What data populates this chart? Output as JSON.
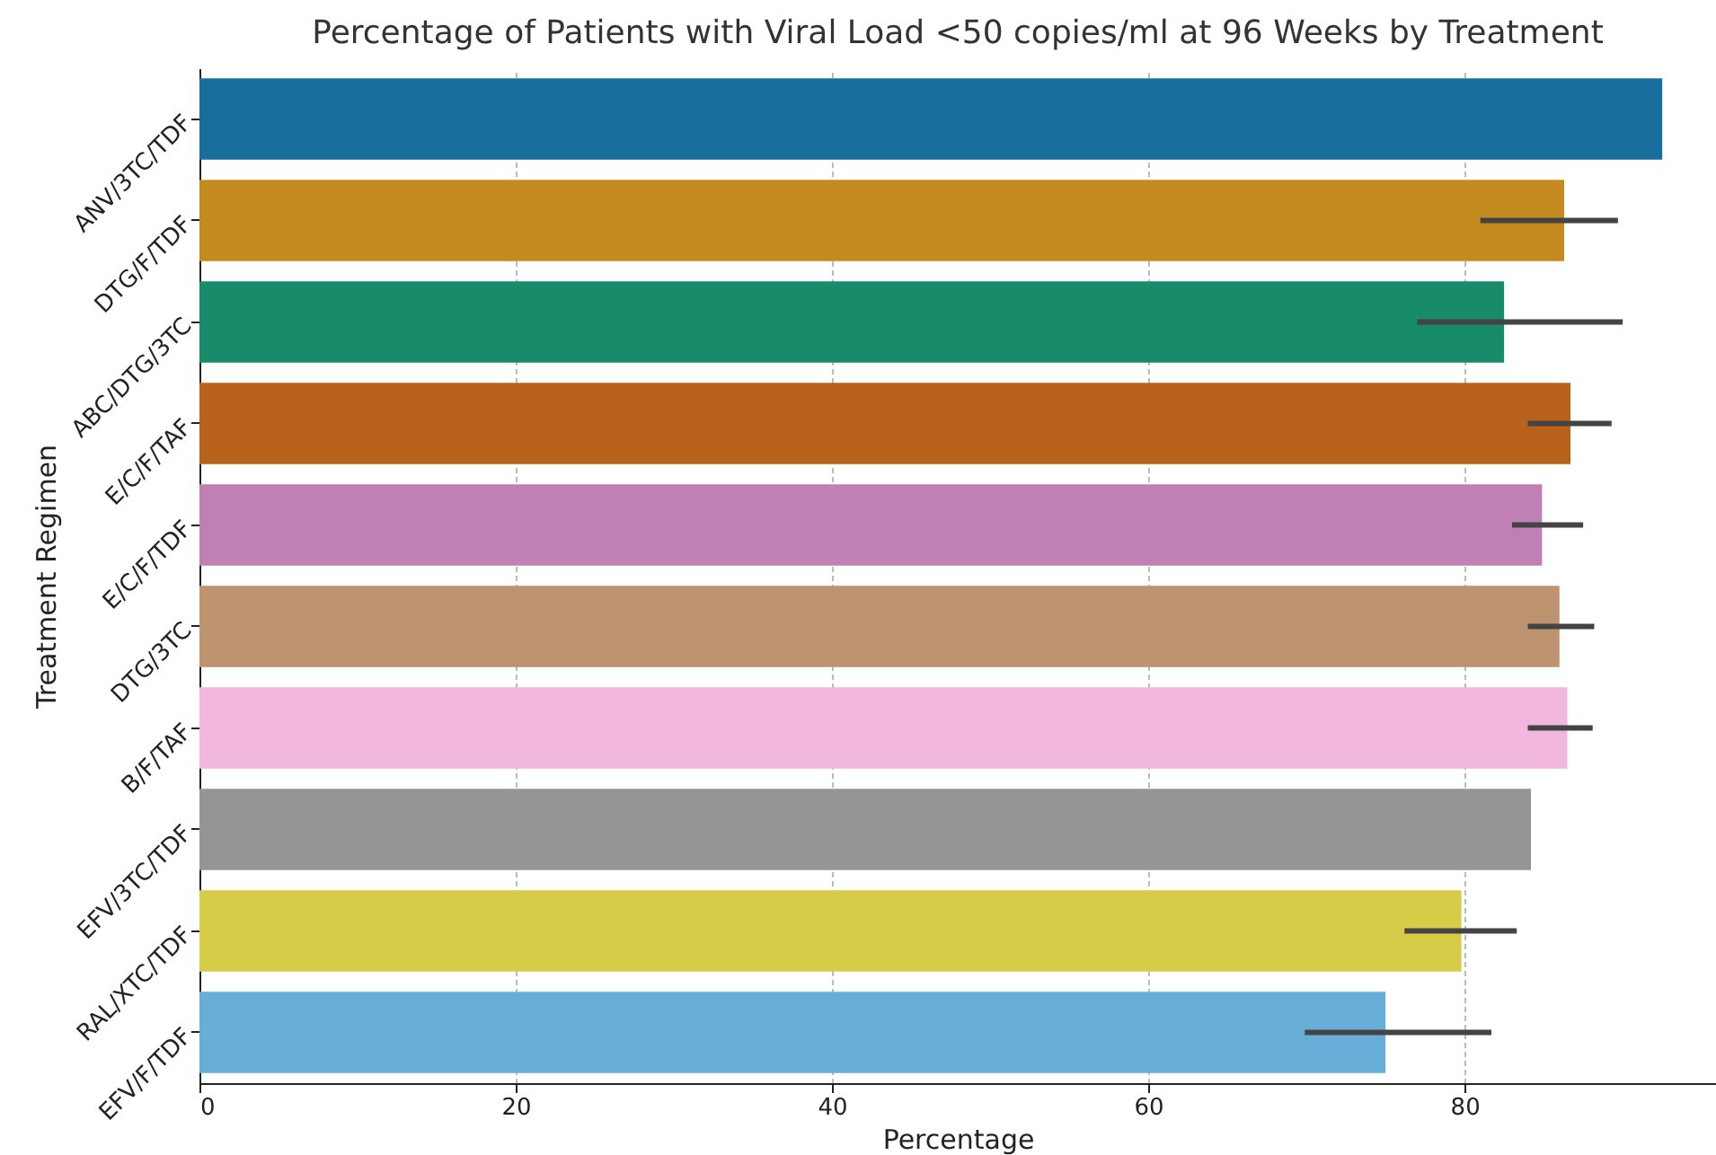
{
  "chart_data": {
    "type": "bar",
    "orientation": "horizontal",
    "title": "Percentage of Patients with Viral Load <50 copies/ml at 96 Weeks by Treatment",
    "xlabel": "Percentage",
    "ylabel": "Treatment Regimen",
    "categories": [
      "ANV/3TC/TDF",
      "DTG/F/TDF",
      "ABC/DTG/3TC",
      "E/C/F/TAF",
      "E/C/F/TDF",
      "DTG/3TC",
      "B/F/TAF",
      "EFV/3TC/TDF",
      "RAL/XTC/TDF",
      "EFV/F/TDF"
    ],
    "values": [
      92.5,
      86.3,
      82.5,
      86.7,
      84.9,
      86.0,
      86.5,
      84.2,
      79.8,
      75.0
    ],
    "colors": [
      "#176e9c",
      "#c48a20",
      "#178b6a",
      "#b9621c",
      "#c180b5",
      "#bd9370",
      "#f1b7df",
      "#959595",
      "#d6cc47",
      "#67aed7"
    ],
    "errors": [
      null,
      [
        81.0,
        89.7
      ],
      [
        77.0,
        90.0
      ],
      [
        84.0,
        89.3
      ],
      [
        83.0,
        87.5
      ],
      [
        84.0,
        88.2
      ],
      [
        84.0,
        88.1
      ],
      null,
      [
        76.2,
        83.3
      ],
      [
        69.9,
        81.7
      ]
    ],
    "xlim": [
      0,
      95.9
    ],
    "xticks": [
      0,
      20,
      40,
      60,
      80
    ],
    "grid": "x"
  }
}
